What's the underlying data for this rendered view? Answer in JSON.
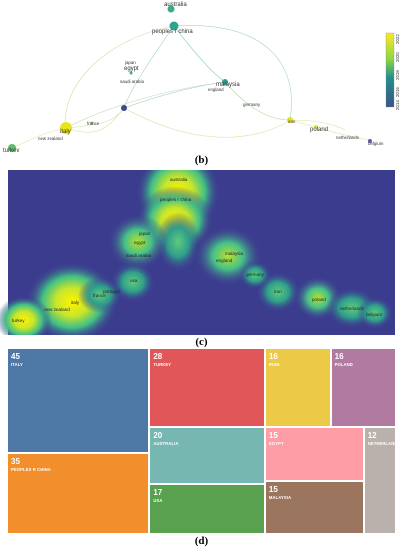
{
  "captions": {
    "b": "(b)",
    "c": "(c)",
    "d": "(d)"
  },
  "network_labels": {
    "australia": "australia",
    "china": "peoples r china",
    "japan": "japan",
    "egypt": "egypt",
    "saudi": "saudi arabia",
    "malaysia": "malaysia",
    "england": "england",
    "germany": "germany",
    "iran": "iran",
    "poland": "poland",
    "netherlands": "netherlands",
    "belgium": "belgium",
    "italy": "italy",
    "france": "france",
    "newzealand": "new zealand",
    "turkey": "turkey",
    "portugal": "portugal"
  },
  "legend_ticks": [
    "2022",
    "2020",
    "2018",
    "2016",
    "2014"
  ],
  "colors": {
    "teal": "#2ca58d",
    "yellow": "#e6e61a",
    "navy": "#3b4990",
    "heat_bg": "#3c3c8f"
  },
  "chart_data": {
    "type": "treemap",
    "title": "",
    "items": [
      {
        "name": "ITALY",
        "value": 45,
        "color": "#4e79a7"
      },
      {
        "name": "PEOPLES R CHINA",
        "value": 35,
        "color": "#f28e2b"
      },
      {
        "name": "TURKEY",
        "value": 28,
        "color": "#e15759"
      },
      {
        "name": "AUSTRALIA",
        "value": 20,
        "color": "#76b7b2"
      },
      {
        "name": "USA",
        "value": 17,
        "color": "#59a14f"
      },
      {
        "name": "IRAN",
        "value": 16,
        "color": "#edc948"
      },
      {
        "name": "POLAND",
        "value": 16,
        "color": "#b07aa1"
      },
      {
        "name": "EGYPT",
        "value": 15,
        "color": "#ff9da7"
      },
      {
        "name": "MALAYSIA",
        "value": 15,
        "color": "#9c755f"
      },
      {
        "name": "NETHERLANDS",
        "value": 12,
        "color": "#bab0ac"
      }
    ]
  }
}
